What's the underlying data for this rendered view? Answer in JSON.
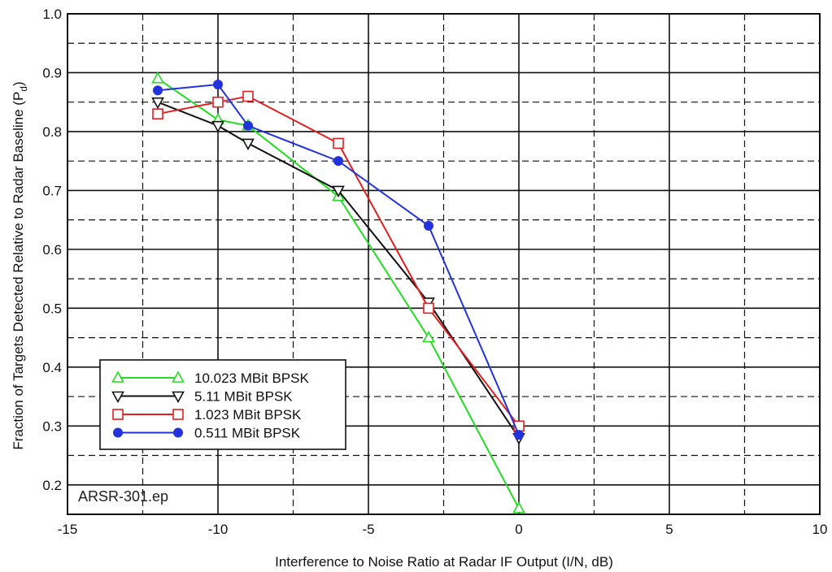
{
  "chart_data": {
    "type": "line",
    "title": "",
    "xlabel": "Interference to Noise Ratio at Radar IF Output (I/N, dB)",
    "ylabel": "Fraction of Targets Detected Relative to Radar Baseline (P",
    "ylabel_subscript": "d",
    "ylabel_close": ")",
    "xlim": [
      -15,
      10
    ],
    "ylim": [
      0.15,
      1.0
    ],
    "x_ticks": [
      -15,
      -10,
      -5,
      0,
      5,
      10
    ],
    "x_tick_labels": [
      "-15",
      "-10",
      "-5",
      "0",
      "5",
      "10"
    ],
    "x_minor_grid": [
      -12.5,
      -7.5,
      -2.5,
      2.5,
      7.5
    ],
    "y_ticks": [
      0.2,
      0.3,
      0.4,
      0.5,
      0.6,
      0.7,
      0.8,
      0.9,
      1.0
    ],
    "y_tick_labels": [
      "0.2",
      "0.3",
      "0.4",
      "0.5",
      "0.6",
      "0.7",
      "0.8",
      "0.9",
      "1.0"
    ],
    "y_minor_grid": [
      0.25,
      0.35,
      0.45,
      0.55,
      0.65,
      0.75,
      0.85,
      0.95
    ],
    "grid": true,
    "legend_position": "bottom-left",
    "annotation": "ARSR-301.ep",
    "series": [
      {
        "name": "10.023 MBit BPSK",
        "color": "#22dd22",
        "marker": "triangle-up",
        "x": [
          -12,
          -10,
          -9,
          -6,
          -3,
          0
        ],
        "y": [
          0.89,
          0.82,
          0.81,
          0.69,
          0.45,
          0.16
        ]
      },
      {
        "name": "5.11 MBit BPSK",
        "color": "#111111",
        "marker": "triangle-down",
        "x": [
          -12,
          -10,
          -9,
          -6,
          -3,
          0
        ],
        "y": [
          0.85,
          0.81,
          0.78,
          0.7,
          0.51,
          0.28
        ]
      },
      {
        "name": "1.023 MBit BPSK",
        "color": "#e02020",
        "marker": "square",
        "x": [
          -12,
          -10,
          -9,
          -6,
          -3,
          0
        ],
        "y": [
          0.83,
          0.85,
          0.86,
          0.78,
          0.5,
          0.3
        ]
      },
      {
        "name": "0.511 MBit BPSK",
        "color": "#2233dd",
        "marker": "circle",
        "x": [
          -12,
          -10,
          -9,
          -6,
          -3,
          0
        ],
        "y": [
          0.87,
          0.88,
          0.81,
          0.75,
          0.64,
          0.285
        ]
      }
    ]
  }
}
